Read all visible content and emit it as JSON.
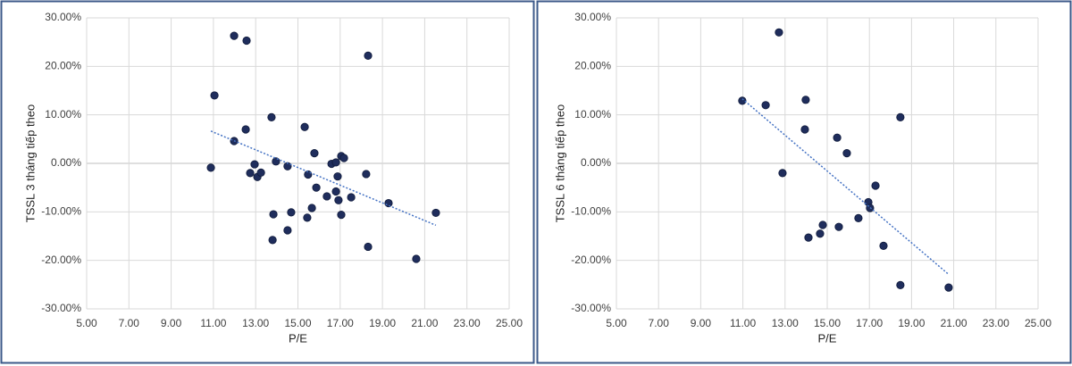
{
  "chart_data": [
    {
      "type": "scatter",
      "y_label": "TSSL 3 tháng tiếp theo",
      "x_label": "P/E",
      "x": [
        10.88,
        11.05,
        11.98,
        11.98,
        12.57,
        12.53,
        12.74,
        12.95,
        13.08,
        13.25,
        13.75,
        13.84,
        13.8,
        13.96,
        14.51,
        14.51,
        14.68,
        15.32,
        15.44,
        15.48,
        15.66,
        15.78,
        15.87,
        16.37,
        16.59,
        16.8,
        16.8,
        16.88,
        16.92,
        17.05,
        17.05,
        17.18,
        17.52,
        18.23,
        18.32,
        18.32,
        19.29,
        20.6,
        21.53
      ],
      "values": [
        -0.9,
        14.0,
        26.3,
        4.6,
        25.3,
        7.0,
        -2.0,
        -0.2,
        -2.8,
        -1.9,
        9.5,
        -10.5,
        -15.8,
        0.4,
        -0.6,
        -13.8,
        -10.1,
        7.5,
        -11.2,
        -2.3,
        -9.2,
        2.1,
        -5.0,
        -6.8,
        -0.1,
        0.2,
        -5.8,
        -2.7,
        -7.6,
        1.5,
        -10.6,
        1.1,
        -7.0,
        -2.2,
        22.2,
        -17.2,
        -8.2,
        -19.7,
        -10.2
      ],
      "color": "#1f2d5c",
      "trendline": true,
      "trend_color": "#4472c4",
      "grid": true,
      "xlim": [
        5,
        25
      ],
      "xticks": [
        {
          "value": 5,
          "label": "5.00"
        },
        {
          "value": 7,
          "label": "7.00"
        },
        {
          "value": 9,
          "label": "9.00"
        },
        {
          "value": 11,
          "label": "11.00"
        },
        {
          "value": 13,
          "label": "13.00"
        },
        {
          "value": 15,
          "label": "15.00"
        },
        {
          "value": 17,
          "label": "17.00"
        },
        {
          "value": 19,
          "label": "19.00"
        },
        {
          "value": 21,
          "label": "21.00"
        },
        {
          "value": 23,
          "label": "23.00"
        },
        {
          "value": 25,
          "label": "25.00"
        }
      ],
      "ylim": [
        -30,
        30
      ],
      "yticks": [
        {
          "value": -30,
          "label": "-30.00%"
        },
        {
          "value": -20,
          "label": "-20.00%"
        },
        {
          "value": -10,
          "label": "-10.00%"
        },
        {
          "value": 0,
          "label": "0.00%"
        },
        {
          "value": 10,
          "label": "10.00%"
        },
        {
          "value": 20,
          "label": "20.00%"
        },
        {
          "value": 30,
          "label": "30.00%"
        }
      ]
    },
    {
      "type": "scatter",
      "y_label": "TSSL 6 tháng tiếp theo",
      "x_label": "P/E",
      "x": [
        10.97,
        12.08,
        12.71,
        12.88,
        13.98,
        13.94,
        14.11,
        14.66,
        14.79,
        15.47,
        15.55,
        15.93,
        16.48,
        16.95,
        17.03,
        17.29,
        17.67,
        18.47,
        18.47,
        20.76
      ],
      "values": [
        12.9,
        12.0,
        27.0,
        -2.0,
        13.1,
        7.0,
        -15.3,
        -14.5,
        -12.7,
        5.3,
        -13.1,
        2.1,
        -11.3,
        -8.0,
        -9.2,
        -4.6,
        -17.0,
        9.5,
        -25.1,
        -25.6
      ],
      "color": "#1f2d5c",
      "trendline": true,
      "trend_color": "#4472c4",
      "grid": true,
      "xlim": [
        5,
        25
      ],
      "xticks": [
        {
          "value": 5,
          "label": "5.00"
        },
        {
          "value": 7,
          "label": "7.00"
        },
        {
          "value": 9,
          "label": "9.00"
        },
        {
          "value": 11,
          "label": "11.00"
        },
        {
          "value": 13,
          "label": "13.00"
        },
        {
          "value": 15,
          "label": "15.00"
        },
        {
          "value": 17,
          "label": "17.00"
        },
        {
          "value": 19,
          "label": "19.00"
        },
        {
          "value": 21,
          "label": "21.00"
        },
        {
          "value": 23,
          "label": "23.00"
        },
        {
          "value": 25,
          "label": "25.00"
        }
      ],
      "ylim": [
        -30,
        30
      ],
      "yticks": [
        {
          "value": -30,
          "label": "-30.00%"
        },
        {
          "value": -20,
          "label": "-20.00%"
        },
        {
          "value": -10,
          "label": "-10.00%"
        },
        {
          "value": 0,
          "label": "0.00%"
        },
        {
          "value": 10,
          "label": "10.00%"
        },
        {
          "value": 20,
          "label": "20.00%"
        },
        {
          "value": 30,
          "label": "30.00%"
        }
      ]
    }
  ]
}
